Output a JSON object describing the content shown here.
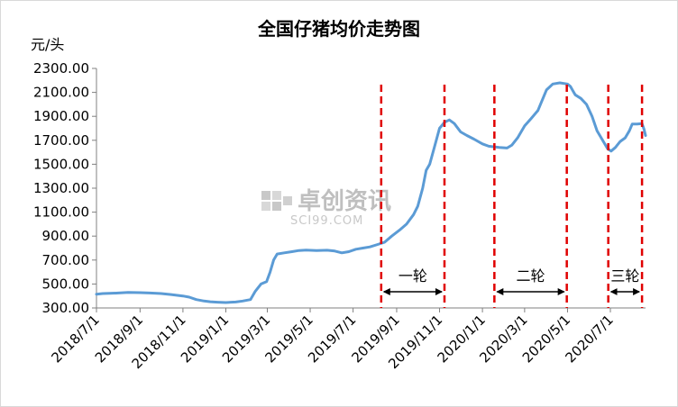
{
  "chart_data": {
    "type": "line",
    "title": "全国仔猪均价走势图",
    "y_unit_label": "元/头",
    "ylim": [
      300,
      2300
    ],
    "y_ticks": [
      "2300.00",
      "2100.00",
      "1900.00",
      "1700.00",
      "1500.00",
      "1300.00",
      "1100.00",
      "900.00",
      "700.00",
      "500.00",
      "300.00"
    ],
    "x_ticks": [
      "2018/7/1",
      "2018/9/1",
      "2018/11/1",
      "2019/1/1",
      "2019/3/1",
      "2019/5/1",
      "2019/7/1",
      "2019/9/1",
      "2019/11/1",
      "2020/1/1",
      "2020/3/1",
      "2020/5/1",
      "2020/7/1"
    ],
    "x_range": [
      "2018-07-01",
      "2020-08-20"
    ],
    "grid": false,
    "line_color": "#5b9bd5",
    "series": [
      {
        "points": [
          [
            "2018-07-01",
            415
          ],
          [
            "2018-07-10",
            420
          ],
          [
            "2018-07-20",
            422
          ],
          [
            "2018-08-01",
            425
          ],
          [
            "2018-08-15",
            430
          ],
          [
            "2018-09-01",
            428
          ],
          [
            "2018-09-15",
            425
          ],
          [
            "2018-10-01",
            420
          ],
          [
            "2018-10-15",
            412
          ],
          [
            "2018-11-01",
            400
          ],
          [
            "2018-11-10",
            390
          ],
          [
            "2018-11-20",
            370
          ],
          [
            "2018-12-01",
            358
          ],
          [
            "2018-12-10",
            352
          ],
          [
            "2018-12-20",
            348
          ],
          [
            "2019-01-01",
            345
          ],
          [
            "2019-01-15",
            350
          ],
          [
            "2019-01-25",
            358
          ],
          [
            "2019-02-05",
            370
          ],
          [
            "2019-02-12",
            440
          ],
          [
            "2019-02-20",
            500
          ],
          [
            "2019-02-28",
            520
          ],
          [
            "2019-03-05",
            600
          ],
          [
            "2019-03-10",
            700
          ],
          [
            "2019-03-15",
            750
          ],
          [
            "2019-03-25",
            760
          ],
          [
            "2019-04-05",
            770
          ],
          [
            "2019-04-15",
            780
          ],
          [
            "2019-04-25",
            783
          ],
          [
            "2019-05-10",
            780
          ],
          [
            "2019-05-25",
            782
          ],
          [
            "2019-06-05",
            775
          ],
          [
            "2019-06-15",
            760
          ],
          [
            "2019-06-25",
            770
          ],
          [
            "2019-07-05",
            790
          ],
          [
            "2019-07-15",
            800
          ],
          [
            "2019-07-25",
            810
          ],
          [
            "2019-08-05",
            830
          ],
          [
            "2019-08-15",
            850
          ],
          [
            "2019-08-25",
            900
          ],
          [
            "2019-09-05",
            950
          ],
          [
            "2019-09-15",
            1000
          ],
          [
            "2019-09-25",
            1080
          ],
          [
            "2019-10-01",
            1150
          ],
          [
            "2019-10-08",
            1300
          ],
          [
            "2019-10-13",
            1450
          ],
          [
            "2019-10-18",
            1500
          ],
          [
            "2019-10-25",
            1650
          ],
          [
            "2019-11-01",
            1800
          ],
          [
            "2019-11-08",
            1850
          ],
          [
            "2019-11-15",
            1870
          ],
          [
            "2019-11-22",
            1840
          ],
          [
            "2019-12-01",
            1770
          ],
          [
            "2019-12-10",
            1740
          ],
          [
            "2019-12-20",
            1710
          ],
          [
            "2020-01-01",
            1670
          ],
          [
            "2020-01-10",
            1650
          ],
          [
            "2020-01-25",
            1640
          ],
          [
            "2020-02-05",
            1635
          ],
          [
            "2020-02-12",
            1660
          ],
          [
            "2020-02-20",
            1720
          ],
          [
            "2020-03-01",
            1820
          ],
          [
            "2020-03-10",
            1880
          ],
          [
            "2020-03-20",
            1950
          ],
          [
            "2020-04-01",
            2120
          ],
          [
            "2020-04-10",
            2170
          ],
          [
            "2020-04-20",
            2180
          ],
          [
            "2020-05-01",
            2170
          ],
          [
            "2020-05-05",
            2150
          ],
          [
            "2020-05-12",
            2080
          ],
          [
            "2020-05-20",
            2050
          ],
          [
            "2020-05-28",
            2000
          ],
          [
            "2020-06-05",
            1900
          ],
          [
            "2020-06-12",
            1780
          ],
          [
            "2020-06-20",
            1700
          ],
          [
            "2020-06-27",
            1630
          ],
          [
            "2020-07-02",
            1610
          ],
          [
            "2020-07-08",
            1640
          ],
          [
            "2020-07-15",
            1690
          ],
          [
            "2020-07-22",
            1720
          ],
          [
            "2020-07-28",
            1780
          ],
          [
            "2020-08-01",
            1835
          ],
          [
            "2020-08-08",
            1835
          ],
          [
            "2020-08-15",
            1840
          ],
          [
            "2020-08-18",
            1790
          ],
          [
            "2020-08-20",
            1740
          ]
        ]
      }
    ],
    "marker_lines": [
      "2019-08-10",
      "2019-11-08",
      "2020-01-18",
      "2020-04-30",
      "2020-06-28",
      "2020-08-15"
    ],
    "rounds": [
      {
        "label": "一轮",
        "start": "2019-08-10",
        "end": "2019-11-08"
      },
      {
        "label": "二轮",
        "start": "2020-01-18",
        "end": "2020-04-30"
      },
      {
        "label": "三轮",
        "start": "2020-06-28",
        "end": "2020-08-15"
      }
    ],
    "marker_color": "#e00000"
  },
  "watermark": {
    "line1": "卓创资讯",
    "line2": "SCI99.COM"
  }
}
